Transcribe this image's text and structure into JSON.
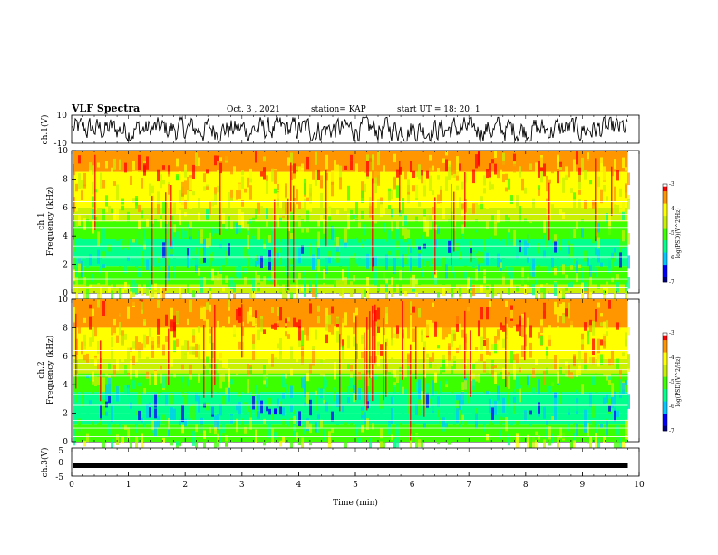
{
  "header": {
    "title": "VLF Spectra",
    "date": "Oct. 3  , 2021",
    "station": "station= KAP",
    "start": "start  UT  =   18: 20: 1"
  },
  "colors": {
    "palette": [
      "#000080",
      "#0000ff",
      "#00c8ff",
      "#00ff8c",
      "#3cff00",
      "#c8f000",
      "#ffff00",
      "#ff9600",
      "#ff0000",
      "#ffffff"
    ]
  },
  "chart_data": [
    {
      "type": "line",
      "panel": "ch1-waveform",
      "ylabel": "ch.1(V)",
      "yticks": [
        "10",
        "-10"
      ],
      "ylim": [
        -10,
        10
      ],
      "xlim": [
        0,
        10
      ],
      "data_extent_min": 9.8,
      "description_level": "noisy waveform oscillating roughly between -8 and 8 V"
    },
    {
      "type": "heatmap",
      "panel": "ch1-spectrogram",
      "ylabel": "Frequency  (kHz)",
      "channel_label": "ch.1",
      "yticks": [
        "0",
        "2",
        "4",
        "6",
        "8",
        "10"
      ],
      "ylim": [
        0,
        10
      ],
      "xlim": [
        0,
        10
      ],
      "data_extent_min": 9.8,
      "zlim": [
        -7,
        -3
      ],
      "colorbar_label": "log(PSD)(V^2/Hz)",
      "colorbar_ticks": [
        "-3",
        "-4",
        "-5",
        "-6",
        "-7"
      ],
      "bands": [
        {
          "from": 0.0,
          "to": 0.6,
          "level": -4.4
        },
        {
          "from": 0.6,
          "to": 1.9,
          "level": -4.9
        },
        {
          "from": 1.9,
          "to": 2.4,
          "level": -5.3
        },
        {
          "from": 2.4,
          "to": 3.8,
          "level": -5.6
        },
        {
          "from": 3.8,
          "to": 5.0,
          "level": -5.1
        },
        {
          "from": 5.0,
          "to": 6.0,
          "level": -4.6
        },
        {
          "from": 6.0,
          "to": 8.5,
          "level": -4.1
        },
        {
          "from": 8.5,
          "to": 10.0,
          "level": -3.7
        }
      ]
    },
    {
      "type": "heatmap",
      "panel": "ch2-spectrogram",
      "ylabel": "Frequency  (kHz)",
      "channel_label": "ch.2",
      "yticks": [
        "0",
        "2",
        "4",
        "6",
        "8",
        "10"
      ],
      "ylim": [
        0,
        10
      ],
      "xlim": [
        0,
        10
      ],
      "data_extent_min": 9.8,
      "zlim": [
        -7,
        -3
      ],
      "colorbar_label": "log(PSD)(V^2/Hz)",
      "colorbar_ticks": [
        "-3",
        "-4",
        "-5",
        "-6",
        "-7"
      ],
      "bands": [
        {
          "from": 0.0,
          "to": 1.2,
          "level": -4.8
        },
        {
          "from": 1.2,
          "to": 2.0,
          "level": -5.3
        },
        {
          "from": 2.0,
          "to": 3.5,
          "level": -5.7
        },
        {
          "from": 3.5,
          "to": 4.8,
          "level": -5.2
        },
        {
          "from": 4.8,
          "to": 5.8,
          "level": -4.3
        },
        {
          "from": 5.8,
          "to": 8.0,
          "level": -4.0
        },
        {
          "from": 8.0,
          "to": 10.0,
          "level": -3.7
        }
      ]
    },
    {
      "type": "line",
      "panel": "ch3-waveform",
      "ylabel": "ch.3(V)",
      "yticks": [
        "5",
        "0",
        "-5"
      ],
      "ylim": [
        -5,
        5
      ],
      "xlim": [
        0,
        10
      ],
      "data_extent_min": 9.8,
      "level_v": -1.3,
      "xlabel": "Time  (min)",
      "xticks": [
        "0",
        "1",
        "2",
        "3",
        "4",
        "5",
        "6",
        "7",
        "8",
        "9",
        "10"
      ]
    }
  ]
}
